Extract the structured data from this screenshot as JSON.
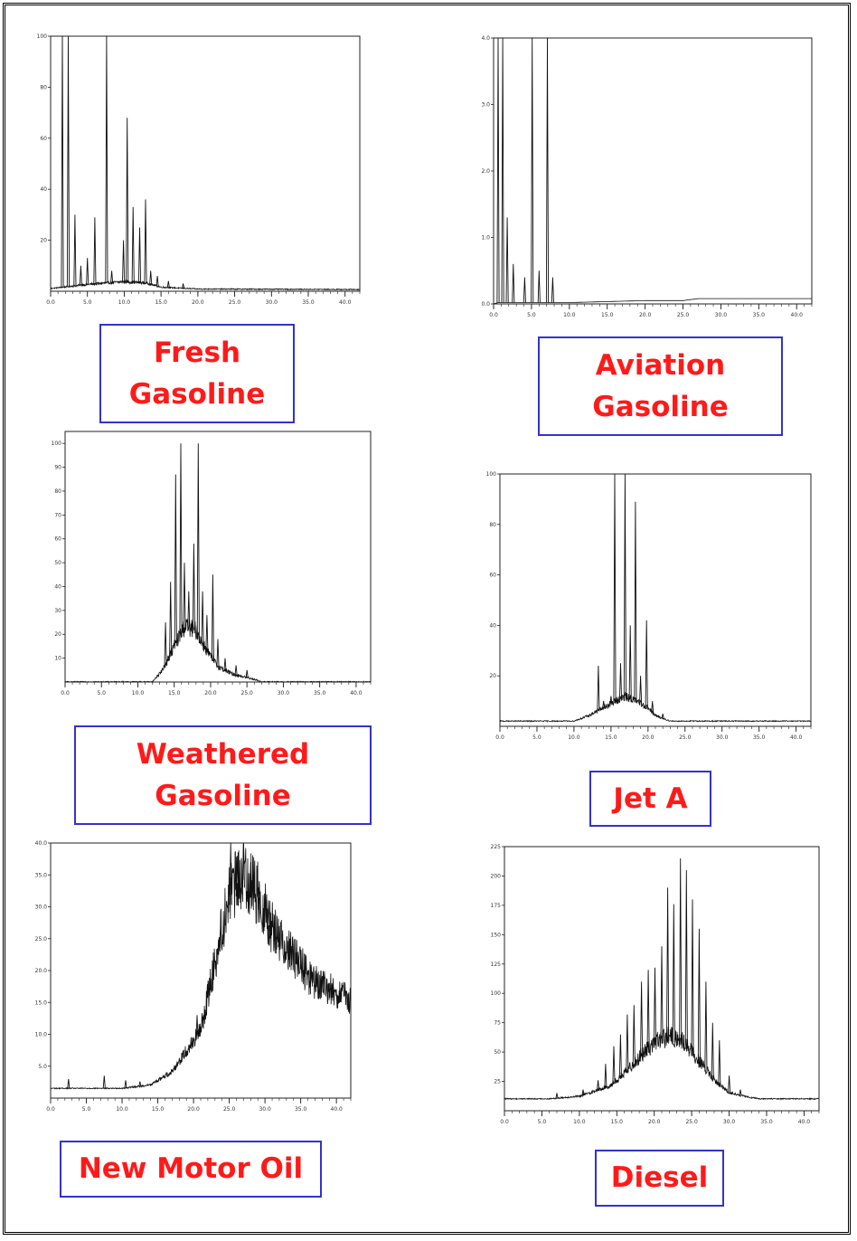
{
  "chart_data": [
    {
      "type": "line",
      "id": "fresh-gasoline",
      "label_lines": [
        "Fresh",
        "Gasoline"
      ],
      "xlim": [
        0,
        42
      ],
      "ylim": [
        0,
        100
      ],
      "xticks": [
        "0.0",
        "5.0",
        "10.0",
        "15.0",
        "20.0",
        "25.0",
        "30.0",
        "35.0",
        "40.0"
      ],
      "xtick_values": [
        0,
        5,
        10,
        15,
        20,
        25,
        30,
        35,
        40
      ],
      "yticks": [
        "20",
        "40",
        "60",
        "80",
        "100"
      ],
      "ytick_values": [
        20,
        40,
        60,
        80,
        100
      ],
      "baseline": [
        [
          0,
          1
        ],
        [
          5,
          2.5
        ],
        [
          10,
          3.5
        ],
        [
          13,
          3
        ],
        [
          15,
          1.5
        ],
        [
          20,
          0.8
        ],
        [
          42,
          0.6
        ]
      ],
      "peaks": [
        [
          1.6,
          100
        ],
        [
          2.4,
          100
        ],
        [
          3.3,
          30
        ],
        [
          4.1,
          10
        ],
        [
          5.0,
          13
        ],
        [
          6.0,
          29
        ],
        [
          7.6,
          100
        ],
        [
          8.3,
          8
        ],
        [
          9.9,
          20
        ],
        [
          10.4,
          68
        ],
        [
          11.2,
          33
        ],
        [
          12.1,
          25
        ],
        [
          12.9,
          36
        ],
        [
          13.6,
          8
        ],
        [
          14.5,
          6
        ],
        [
          16.0,
          4
        ],
        [
          18.0,
          3
        ]
      ],
      "shape": "decay"
    },
    {
      "type": "line",
      "id": "aviation-gasoline",
      "label_lines": [
        "Aviation",
        "Gasoline"
      ],
      "xlim": [
        0,
        42
      ],
      "ylim": [
        0,
        4.0
      ],
      "xticks": [
        "0.0",
        "5.0",
        "10.0",
        "15.0",
        "20.0",
        "25.0",
        "30.0",
        "35.0",
        "40.0"
      ],
      "xtick_values": [
        0,
        5,
        10,
        15,
        20,
        25,
        30,
        35,
        40
      ],
      "yticks": [
        "0.0",
        "1.0",
        "2.0",
        "3.0",
        "4.0"
      ],
      "ytick_values": [
        0,
        1,
        2,
        3,
        4
      ],
      "baseline": [
        [
          0,
          0
        ],
        [
          0.6,
          0.02
        ],
        [
          1.3,
          0.02
        ],
        [
          10,
          0.02
        ],
        [
          20,
          0.05
        ],
        [
          25,
          0.05
        ],
        [
          27,
          0.08
        ],
        [
          42,
          0.08
        ]
      ],
      "peaks": [
        [
          0.6,
          4.0
        ],
        [
          1.2,
          4.0
        ],
        [
          1.8,
          1.3
        ],
        [
          2.6,
          0.6
        ],
        [
          4.1,
          0.4
        ],
        [
          5.1,
          4.0
        ],
        [
          6.0,
          0.5
        ],
        [
          7.1,
          4.0
        ],
        [
          7.8,
          0.4
        ]
      ],
      "shape": "flat"
    },
    {
      "type": "line",
      "id": "weathered-gasoline",
      "label_lines": [
        "Weathered",
        "Gasoline"
      ],
      "xlim": [
        0,
        42
      ],
      "ylim": [
        0,
        105
      ],
      "xticks": [
        "0.0",
        "5.0",
        "10.0",
        "15.0",
        "20.0",
        "25.0",
        "30.0",
        "35.0",
        "40.0"
      ],
      "xtick_values": [
        0,
        5,
        10,
        15,
        20,
        25,
        30,
        35,
        40
      ],
      "yticks": [
        "10",
        "20",
        "30",
        "40",
        "50",
        "60",
        "70",
        "80",
        "90",
        "100"
      ],
      "ytick_values": [
        10,
        20,
        30,
        40,
        50,
        60,
        70,
        80,
        90,
        100
      ],
      "baseline": [
        [
          0,
          0
        ],
        [
          12,
          0
        ],
        [
          13.5,
          5
        ],
        [
          15,
          14
        ],
        [
          16.5,
          22
        ],
        [
          18,
          20
        ],
        [
          19.5,
          12
        ],
        [
          21,
          6
        ],
        [
          23,
          3
        ],
        [
          26,
          1
        ],
        [
          27,
          0
        ],
        [
          42,
          0
        ]
      ],
      "peaks": [
        [
          13.8,
          25
        ],
        [
          14.5,
          42
        ],
        [
          15.2,
          87
        ],
        [
          15.9,
          100
        ],
        [
          16.4,
          50
        ],
        [
          17.0,
          38
        ],
        [
          17.7,
          58
        ],
        [
          18.3,
          100
        ],
        [
          18.9,
          38
        ],
        [
          19.5,
          28
        ],
        [
          20.3,
          45
        ],
        [
          21.0,
          18
        ],
        [
          22.0,
          10
        ],
        [
          23.5,
          7
        ],
        [
          25.0,
          5
        ]
      ],
      "shape": "hump"
    },
    {
      "type": "line",
      "id": "jet-a",
      "label_lines": [
        "Jet A"
      ],
      "xlim": [
        0,
        42
      ],
      "ylim": [
        0,
        100
      ],
      "xticks": [
        "0.0",
        "5.0",
        "10.0",
        "15.0",
        "20.0",
        "25.0",
        "30.0",
        "35.0",
        "40.0"
      ],
      "xtick_values": [
        0,
        5,
        10,
        15,
        20,
        25,
        30,
        35,
        40
      ],
      "yticks": [
        "20",
        "40",
        "60",
        "80",
        "100"
      ],
      "ytick_values": [
        20,
        40,
        60,
        80,
        100
      ],
      "baseline": [
        [
          0,
          2
        ],
        [
          10,
          2
        ],
        [
          12,
          4
        ],
        [
          14,
          7
        ],
        [
          16,
          10
        ],
        [
          17,
          11
        ],
        [
          18,
          10
        ],
        [
          20,
          7
        ],
        [
          21,
          4
        ],
        [
          23,
          2
        ],
        [
          42,
          2
        ]
      ],
      "peaks": [
        [
          13.3,
          24
        ],
        [
          14.0,
          10
        ],
        [
          15.0,
          12
        ],
        [
          15.5,
          100
        ],
        [
          16.3,
          25
        ],
        [
          16.9,
          100
        ],
        [
          17.6,
          40
        ],
        [
          18.3,
          89
        ],
        [
          19.0,
          20
        ],
        [
          19.8,
          42
        ],
        [
          20.6,
          10
        ],
        [
          22.0,
          5
        ]
      ],
      "shape": "hump"
    },
    {
      "type": "line",
      "id": "new-motor-oil",
      "label_lines": [
        "New Motor Oil"
      ],
      "xlim": [
        0,
        42
      ],
      "ylim": [
        0,
        40
      ],
      "xticks": [
        "0.0",
        "5.0",
        "10.0",
        "15.0",
        "20.0",
        "25.0",
        "30.0",
        "35.0",
        "40.0"
      ],
      "xtick_values": [
        0,
        5,
        10,
        15,
        20,
        25,
        30,
        35,
        40
      ],
      "yticks": [
        "5.0",
        "10.0",
        "15.0",
        "20.0",
        "25.0",
        "30.0",
        "35.0",
        "40.0"
      ],
      "ytick_values": [
        5,
        10,
        15,
        20,
        25,
        30,
        35,
        40
      ],
      "baseline": [
        [
          0,
          1.5
        ],
        [
          10,
          1.5
        ],
        [
          14,
          2
        ],
        [
          17,
          4
        ],
        [
          19,
          7
        ],
        [
          21,
          10
        ],
        [
          23,
          20
        ],
        [
          25,
          30
        ],
        [
          27,
          33
        ],
        [
          29,
          30
        ],
        [
          31,
          25
        ],
        [
          34,
          21
        ],
        [
          36,
          18
        ],
        [
          37,
          17
        ],
        [
          41,
          15
        ],
        [
          42,
          14
        ]
      ],
      "peaks": [
        [
          2.5,
          3
        ],
        [
          7.5,
          3.5
        ],
        [
          10.5,
          2.8
        ],
        [
          12.5,
          2.6
        ],
        [
          17.5,
          5
        ],
        [
          20.5,
          13
        ],
        [
          23.8,
          27
        ],
        [
          25.2,
          40
        ],
        [
          26.1,
          38
        ],
        [
          27.0,
          40
        ],
        [
          28.0,
          37
        ],
        [
          29.2,
          34
        ],
        [
          30.5,
          31
        ],
        [
          32.0,
          27
        ],
        [
          33.5,
          25
        ],
        [
          35.0,
          22
        ],
        [
          36.5,
          20
        ],
        [
          38.0,
          19
        ],
        [
          39.5,
          18
        ]
      ],
      "shape": "ramp"
    },
    {
      "type": "line",
      "id": "diesel",
      "label_lines": [
        "Diesel"
      ],
      "xlim": [
        0,
        42
      ],
      "ylim": [
        0,
        225
      ],
      "xticks": [
        "0.0",
        "5.0",
        "10.0",
        "15.0",
        "20.0",
        "25.0",
        "30.0",
        "35.0",
        "40.0"
      ],
      "xtick_values": [
        0,
        5,
        10,
        15,
        20,
        25,
        30,
        35,
        40
      ],
      "yticks": [
        "25",
        "50",
        "75",
        "100",
        "125",
        "150",
        "175",
        "200",
        "225"
      ],
      "ytick_values": [
        25,
        50,
        75,
        100,
        125,
        150,
        175,
        200,
        225
      ],
      "baseline": [
        [
          0,
          10
        ],
        [
          6,
          10
        ],
        [
          10,
          12
        ],
        [
          14,
          20
        ],
        [
          16,
          30
        ],
        [
          18,
          43
        ],
        [
          20,
          55
        ],
        [
          22,
          60
        ],
        [
          24,
          55
        ],
        [
          26,
          40
        ],
        [
          28,
          25
        ],
        [
          30,
          15
        ],
        [
          32,
          12
        ],
        [
          34,
          10
        ],
        [
          42,
          10
        ]
      ],
      "peaks": [
        [
          7.0,
          15
        ],
        [
          10.5,
          18
        ],
        [
          12.5,
          26
        ],
        [
          13.5,
          40
        ],
        [
          14.6,
          55
        ],
        [
          15.5,
          65
        ],
        [
          16.4,
          82
        ],
        [
          17.3,
          90
        ],
        [
          18.3,
          110
        ],
        [
          19.2,
          120
        ],
        [
          20.1,
          122
        ],
        [
          21.0,
          140
        ],
        [
          21.8,
          190
        ],
        [
          22.6,
          176
        ],
        [
          23.5,
          215
        ],
        [
          24.3,
          205
        ],
        [
          25.1,
          180
        ],
        [
          26.0,
          155
        ],
        [
          26.9,
          110
        ],
        [
          27.8,
          75
        ],
        [
          28.7,
          60
        ],
        [
          30.0,
          30
        ],
        [
          31.5,
          18
        ]
      ],
      "shape": "hump"
    }
  ]
}
